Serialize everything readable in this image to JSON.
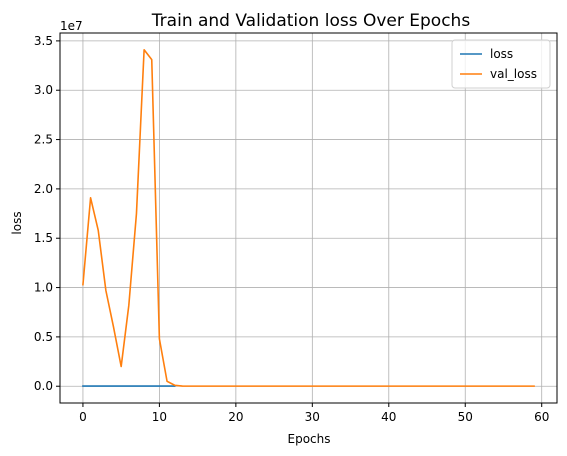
{
  "chart_data": {
    "type": "line",
    "title": "Train and Validation loss Over Epochs",
    "xlabel": "Epochs",
    "ylabel": "loss",
    "offset_text": "1e7",
    "xlim": [
      -3,
      62
    ],
    "ylim": [
      -0.17,
      3.58
    ],
    "xticks": [
      0,
      10,
      20,
      30,
      40,
      50,
      60
    ],
    "xtick_labels": [
      "0",
      "10",
      "20",
      "30",
      "40",
      "50",
      "60"
    ],
    "yticks": [
      0.0,
      0.5,
      1.0,
      1.5,
      2.0,
      2.5,
      3.0,
      3.5
    ],
    "ytick_labels": [
      "0.0",
      "0.5",
      "1.0",
      "1.5",
      "2.0",
      "2.5",
      "3.0",
      "3.5"
    ],
    "grid": true,
    "legend_position": "top-right",
    "series": [
      {
        "name": "loss",
        "color": "#1f77b4",
        "x": [
          0,
          1,
          2,
          3,
          4,
          5,
          6,
          7,
          8,
          9,
          10,
          11,
          12
        ],
        "y": [
          0.002,
          0.002,
          0.002,
          0.002,
          0.002,
          0.002,
          0.002,
          0.002,
          0.002,
          0.002,
          0.002,
          0.002,
          0.002
        ]
      },
      {
        "name": "val_loss",
        "color": "#ff7f0e",
        "x": [
          0,
          1,
          2,
          3,
          4,
          5,
          6,
          7,
          8,
          9,
          10,
          11,
          12,
          13,
          14,
          15,
          16,
          17,
          18,
          19,
          20,
          21,
          22,
          23,
          24,
          25,
          26,
          27,
          28,
          29,
          30,
          31,
          32,
          33,
          34,
          35,
          36,
          37,
          38,
          39,
          40,
          41,
          42,
          43,
          44,
          45,
          46,
          47,
          48,
          49,
          50,
          51,
          52,
          53,
          54,
          55,
          56,
          57,
          58,
          59
        ],
        "y": [
          1.03,
          1.91,
          1.58,
          0.97,
          0.6,
          0.2,
          0.82,
          1.75,
          3.41,
          3.31,
          0.48,
          0.05,
          0.01,
          0.002,
          0.001,
          0.001,
          0.001,
          0.001,
          0.001,
          0.001,
          0.001,
          0.001,
          0.001,
          0.001,
          0.001,
          0.001,
          0.001,
          0.001,
          0.001,
          0.001,
          0.001,
          0.001,
          0.001,
          0.001,
          0.001,
          0.001,
          0.001,
          0.001,
          0.001,
          0.001,
          0.001,
          0.001,
          0.001,
          0.001,
          0.001,
          0.001,
          0.001,
          0.001,
          0.001,
          0.001,
          0.001,
          0.001,
          0.001,
          0.001,
          0.001,
          0.001,
          0.001,
          0.001,
          0.001,
          0.001
        ]
      }
    ]
  }
}
